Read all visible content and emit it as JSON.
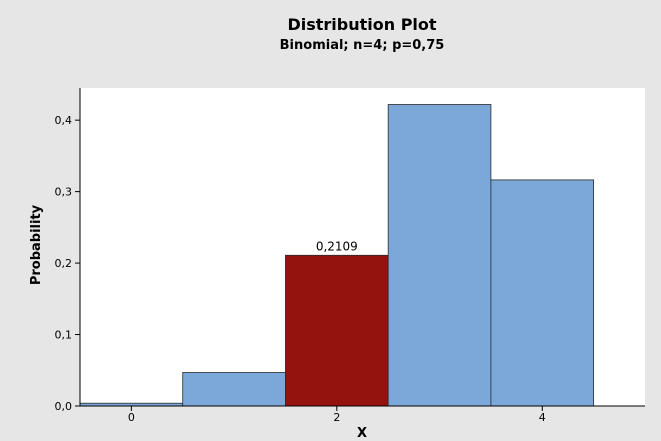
{
  "chart_data": {
    "type": "bar",
    "title": "Distribution Plot",
    "subtitle": "Binomial; n=4; p=0,75",
    "xlabel": "X",
    "ylabel": "Probability",
    "x": [
      0,
      1,
      2,
      3,
      4
    ],
    "values": [
      0.0039,
      0.0469,
      0.2109,
      0.4219,
      0.3164
    ],
    "x_tick_labels": [
      "0",
      "2",
      "4"
    ],
    "y_tick_labels": [
      "0,0",
      "0,1",
      "0,2",
      "0,3",
      "0,4"
    ],
    "y_ticks": [
      0,
      0.1,
      0.2,
      0.3,
      0.4
    ],
    "xlim": [
      -0.5,
      5
    ],
    "ylim": [
      0,
      0.445
    ],
    "highlight_index": 2,
    "highlight_label": "0,2109",
    "grid": false,
    "colors": {
      "bar": "#7ba7d9",
      "highlight": "#94130f",
      "bar_outline": "#2b2b2b",
      "plot_background": "#ffffff",
      "figure_background": "#e6e6e6"
    }
  }
}
